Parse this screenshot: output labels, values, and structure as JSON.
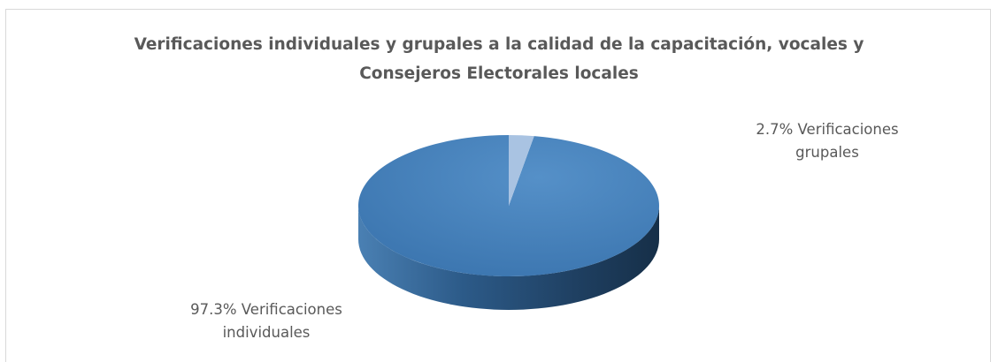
{
  "chart_data": {
    "type": "pie",
    "title": "Verificaciones individuales y grupales a la calidad de la capacitación, vocales y Consejeros Electorales locales",
    "title_lines": [
      "Verificaciones individuales y grupales a la calidad de la capacitación, vocales y",
      "Consejeros Electorales locales"
    ],
    "three_d": true,
    "slices": [
      {
        "name": "Verificaciones individuales",
        "value": 97.3,
        "label_lines": [
          "97.3% Verificaciones",
          "individuales"
        ],
        "color": "#3d7ab8"
      },
      {
        "name": "Verificaciones grupales",
        "value": 2.7,
        "label_lines": [
          "2.7% Verificaciones",
          "grupales"
        ],
        "color": "#a9c3e2"
      }
    ],
    "legend": "none"
  }
}
